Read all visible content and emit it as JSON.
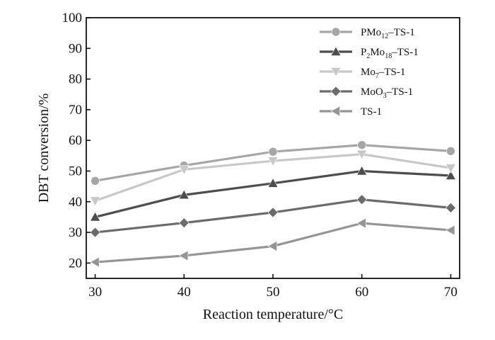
{
  "chart_data": {
    "type": "line",
    "title": "",
    "xlabel": "Reaction temperature/°C",
    "ylabel": "DBT conversion/%",
    "x": [
      30,
      40,
      50,
      60,
      70
    ],
    "xlim": [
      29,
      71
    ],
    "ylim": [
      15,
      100
    ],
    "xticks": [
      30,
      40,
      50,
      60,
      70
    ],
    "yticks": [
      20,
      30,
      40,
      50,
      60,
      70,
      80,
      90,
      100
    ],
    "grid": false,
    "legend_position": "top-right",
    "series": [
      {
        "name": "PMo12–TS-1",
        "name_parts": [
          "PMo",
          "12",
          "–TS-1"
        ],
        "marker": "circle",
        "color": "#a6a6a6",
        "values": [
          46.8,
          51.8,
          56.3,
          58.5,
          56.5
        ]
      },
      {
        "name": "P2Mo18–TS-1",
        "name_parts": [
          "P",
          "2",
          "Mo",
          "18",
          "–TS-1"
        ],
        "marker": "triangle-up",
        "color": "#4d4d4d",
        "values": [
          35.0,
          42.2,
          46.0,
          50.0,
          48.5
        ]
      },
      {
        "name": "Mo7–TS-1",
        "name_parts": [
          "Mo",
          "7",
          "–TS-1"
        ],
        "marker": "triangle-down",
        "color": "#c8c8c8",
        "values": [
          40.3,
          50.5,
          53.3,
          55.5,
          51.0
        ]
      },
      {
        "name": "MoO3–TS-1",
        "name_parts": [
          "MoO",
          "3",
          "–TS-1"
        ],
        "marker": "diamond",
        "color": "#6b6b6b",
        "values": [
          30.0,
          33.1,
          36.5,
          40.7,
          38.0
        ]
      },
      {
        "name": "TS-1",
        "name_parts": [
          "TS-1"
        ],
        "marker": "triangle-left",
        "color": "#959595",
        "values": [
          20.3,
          22.4,
          25.5,
          33.0,
          30.7
        ]
      }
    ]
  }
}
